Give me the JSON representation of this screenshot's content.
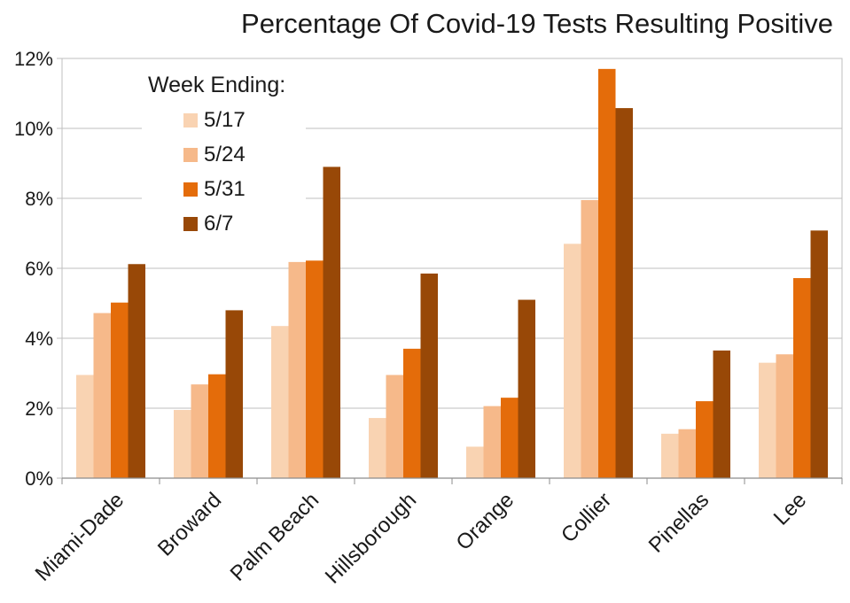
{
  "chart_data": {
    "type": "bar",
    "title": "Percentage Of Covid-19 Tests Resulting Positive",
    "xlabel": "",
    "ylabel": "",
    "categories": [
      "Miami-Dade",
      "Broward",
      "Palm Beach",
      "Hillsborough",
      "Orange",
      "Collier",
      "Pinellas",
      "Lee"
    ],
    "ylim": [
      0,
      12
    ],
    "yticks": [
      0,
      2,
      4,
      6,
      8,
      10,
      12
    ],
    "ytick_labels": [
      "0%",
      "2%",
      "4%",
      "6%",
      "8%",
      "10%",
      "12%"
    ],
    "grid": true,
    "legend": {
      "title": "Week Ending:",
      "placement": "top-left"
    },
    "series": [
      {
        "name": "5/17",
        "color": "#f9d3b2",
        "values": [
          2.95,
          1.95,
          4.35,
          1.72,
          0.9,
          6.7,
          1.27,
          3.3
        ]
      },
      {
        "name": "5/24",
        "color": "#f6b98a",
        "values": [
          4.72,
          2.68,
          6.18,
          2.95,
          2.06,
          7.95,
          1.4,
          3.54
        ]
      },
      {
        "name": "5/31",
        "color": "#e46c0a",
        "values": [
          5.02,
          2.97,
          6.22,
          3.7,
          2.3,
          11.7,
          2.2,
          5.72
        ]
      },
      {
        "name": "6/7",
        "color": "#984807",
        "values": [
          6.12,
          4.8,
          8.9,
          5.85,
          5.1,
          10.58,
          3.65,
          7.08
        ]
      }
    ]
  }
}
